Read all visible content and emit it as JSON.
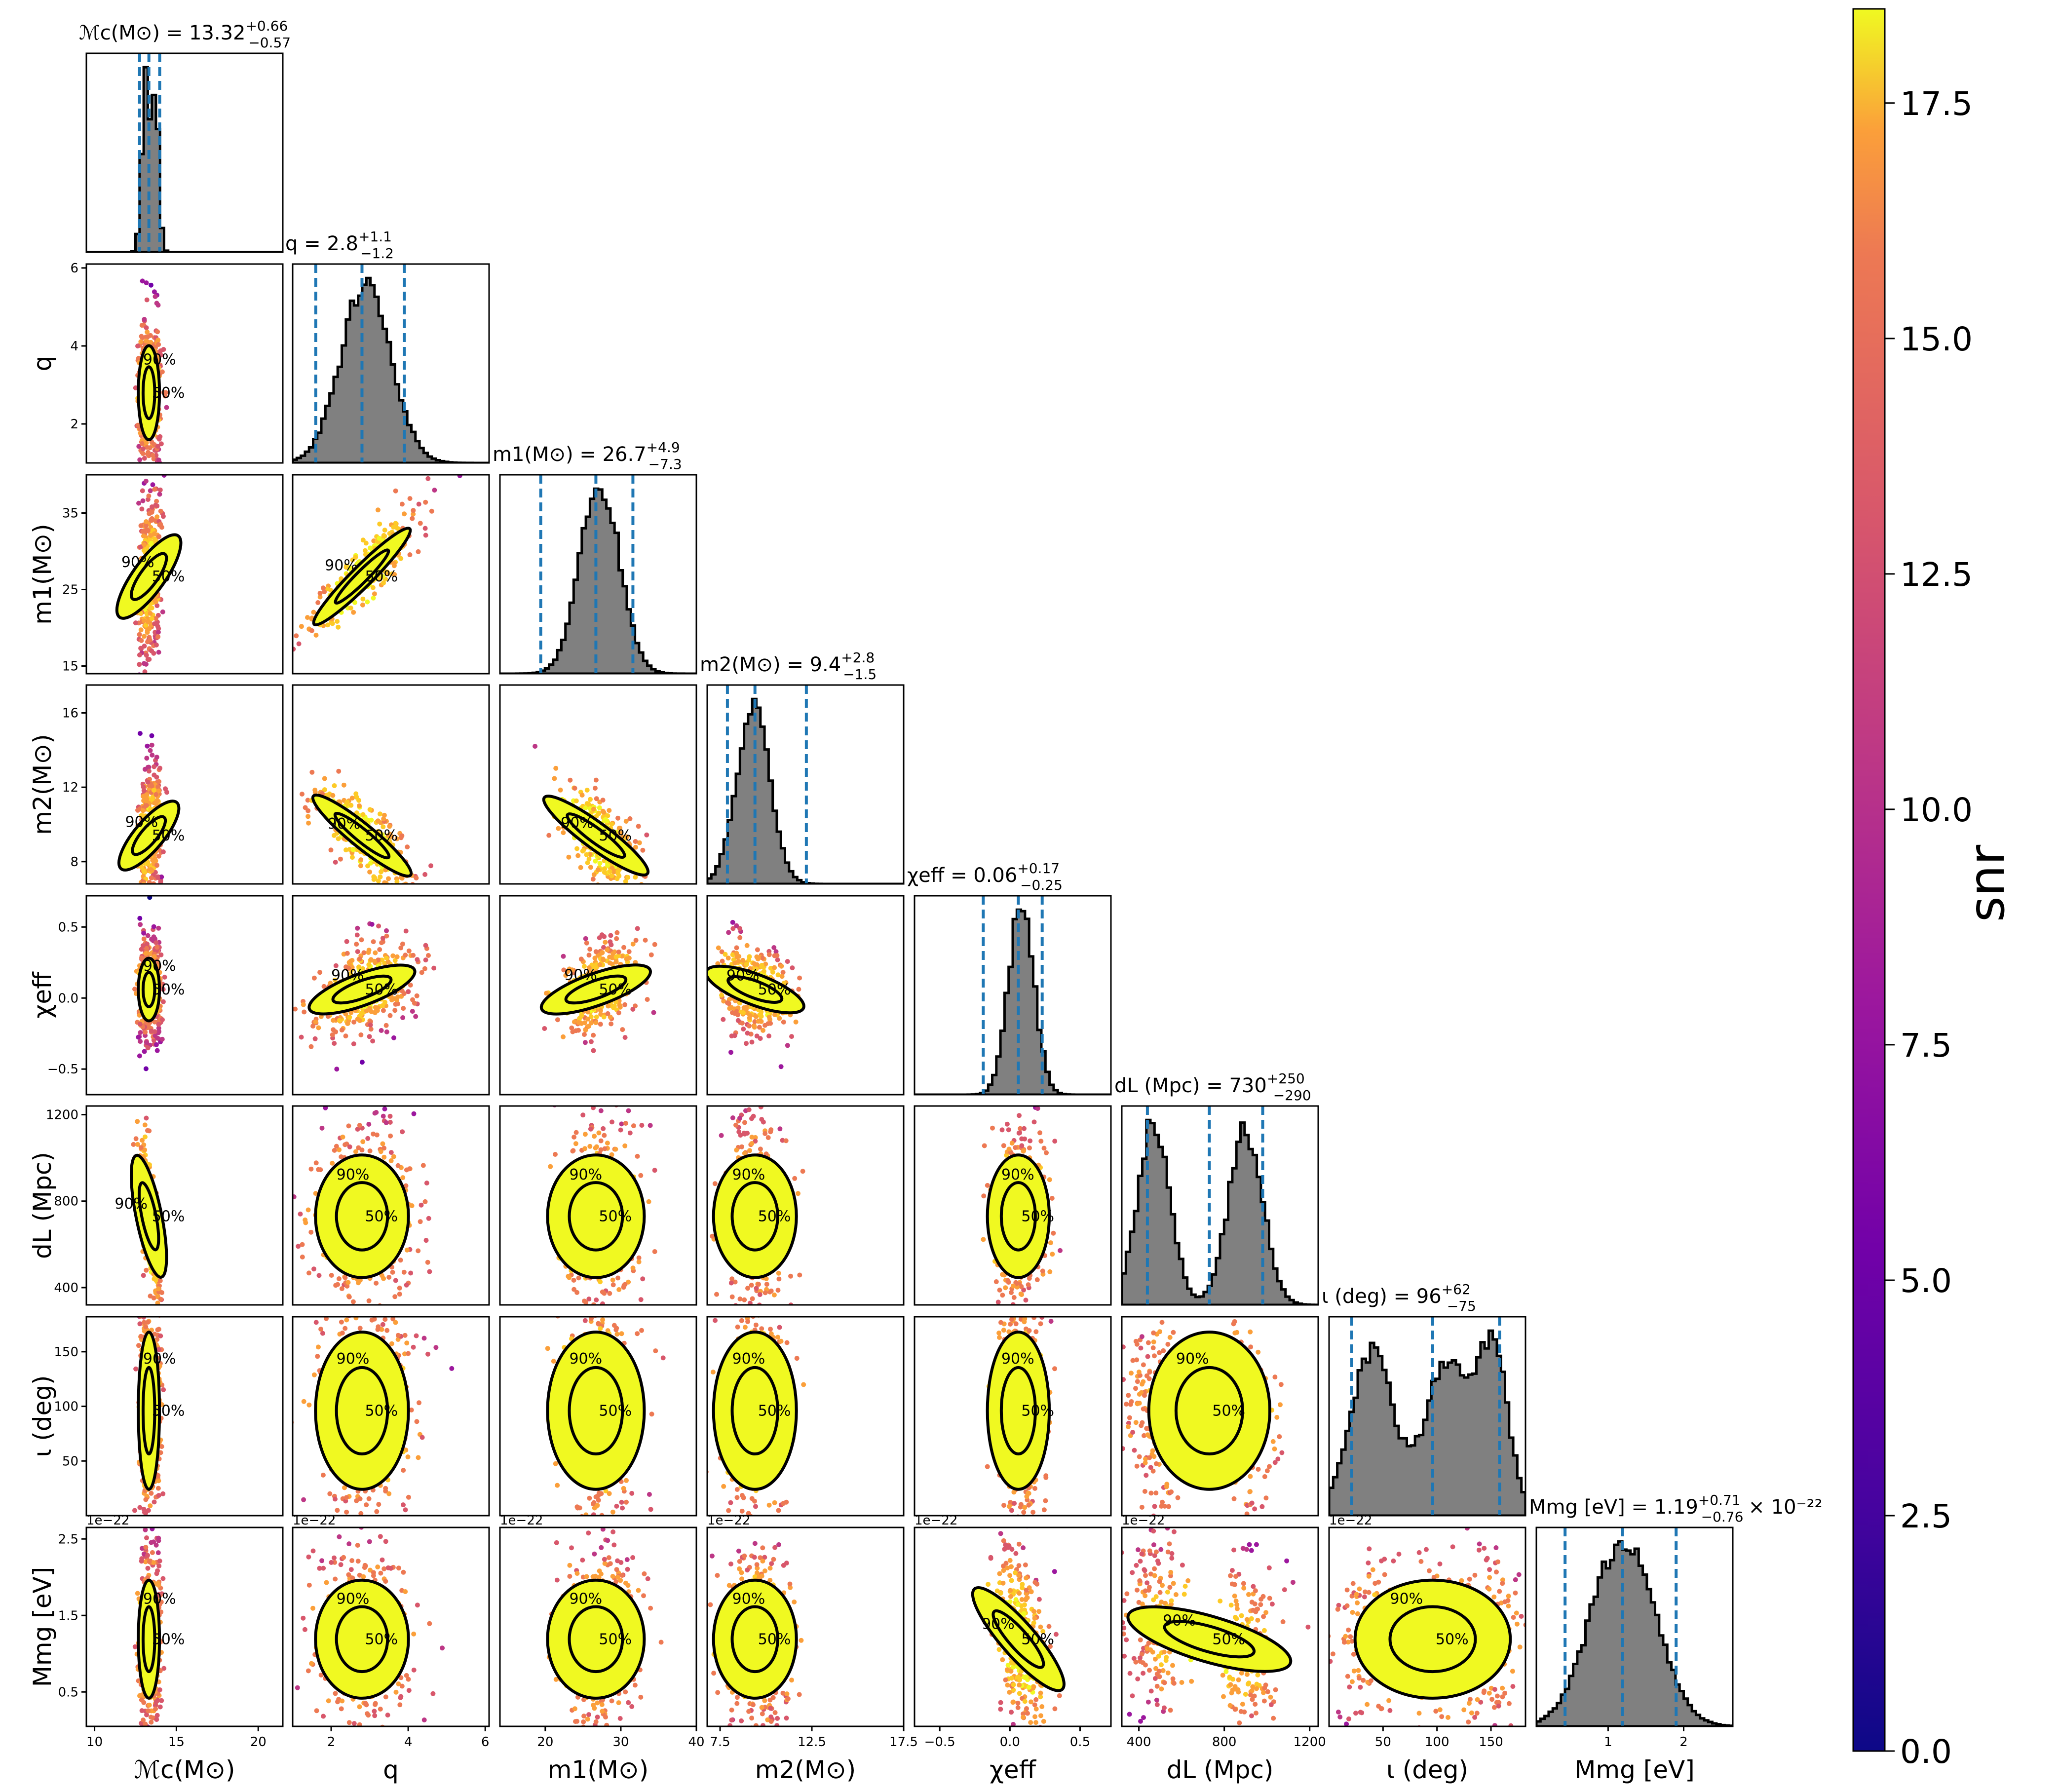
{
  "chart_data": {
    "type": "scatter",
    "layout": "corner plot",
    "colorbar": {
      "label": "snr",
      "range": [
        0,
        18.5
      ],
      "ticks": [
        "0.0",
        "2.5",
        "5.0",
        "7.5",
        "10.0",
        "12.5",
        "15.0",
        "17.5"
      ],
      "colormap": "plasma"
    },
    "colors": {
      "histogram_fill": "#808080",
      "quantile_line": "#1f77b4",
      "contour": "#000000"
    },
    "contour_labels": [
      "50%",
      "90%"
    ],
    "offset_text": "1e−22",
    "parameters": [
      {
        "key": "mc",
        "label": "ℳc(M⊙)",
        "title_main": "ℳc(M⊙) = 13.32",
        "plus": "+0.66",
        "minus": "−0.57",
        "title_suffix": "",
        "range": [
          9.5,
          21.5
        ],
        "ticks": [
          10,
          15,
          20
        ],
        "tick_labels": [
          "10",
          "15",
          "20"
        ],
        "median": 13.32,
        "lo": 12.75,
        "hi": 13.98,
        "modes": [
          {
            "m": 13.1,
            "s": 0.22,
            "w": 1.0
          },
          {
            "m": 13.7,
            "s": 0.22,
            "w": 0.9
          }
        ]
      },
      {
        "key": "q",
        "label": "q",
        "title_main": "q = 2.8",
        "plus": "+1.1",
        "minus": "−1.2",
        "title_suffix": "",
        "range": [
          1.0,
          6.1
        ],
        "ticks": [
          2,
          4,
          6
        ],
        "tick_labels": [
          "2",
          "4",
          "6"
        ],
        "median": 2.8,
        "lo": 1.6,
        "hi": 3.9,
        "modes": [
          {
            "m": 2.9,
            "s": 0.65,
            "w": 1.0
          }
        ]
      },
      {
        "key": "m1",
        "label": "m1(M⊙)",
        "title_main": "m1(M⊙) = 26.7",
        "plus": "+4.9",
        "minus": "−7.3",
        "title_suffix": "",
        "range": [
          14.0,
          40.0
        ],
        "ticks": [
          15,
          25,
          35
        ],
        "tick_labels": [
          "15",
          "25",
          "35"
        ],
        "x_ticks": [
          20,
          30,
          40
        ],
        "x_tick_labels": [
          "20",
          "30",
          "40"
        ],
        "median": 26.7,
        "lo": 19.4,
        "hi": 31.6,
        "modes": [
          {
            "m": 27.2,
            "s": 2.6,
            "w": 1.0
          }
        ]
      },
      {
        "key": "m2",
        "label": "m2(M⊙)",
        "title_main": "m2(M⊙) = 9.4",
        "plus": "+2.8",
        "minus": "−1.5",
        "title_suffix": "",
        "range": [
          6.8,
          17.5
        ],
        "ticks": [
          8,
          12,
          16
        ],
        "tick_labels": [
          "8",
          "12",
          "16"
        ],
        "x_ticks": [
          7.5,
          12.5,
          17.5
        ],
        "x_tick_labels": [
          "7.5",
          "12.5",
          "17.5"
        ],
        "median": 9.4,
        "lo": 7.9,
        "hi": 12.2,
        "modes": [
          {
            "m": 9.3,
            "s": 0.9,
            "w": 1.0
          }
        ]
      },
      {
        "key": "chi",
        "label": "χeff",
        "title_main": "χeff = 0.06",
        "plus": "+0.17",
        "minus": "−0.25",
        "title_suffix": "",
        "range": [
          -0.68,
          0.72
        ],
        "ticks": [
          -0.5,
          0.0,
          0.5
        ],
        "tick_labels": [
          "−0.5",
          "0.0",
          "0.5"
        ],
        "median": 0.06,
        "lo": -0.19,
        "hi": 0.23,
        "modes": [
          {
            "m": 0.08,
            "s": 0.09,
            "w": 1.0
          }
        ]
      },
      {
        "key": "dl",
        "label": "dL (Mpc)",
        "title_main": "dL (Mpc) = 730",
        "plus": "+250",
        "minus": "−290",
        "title_suffix": "",
        "range": [
          320,
          1240
        ],
        "ticks": [
          400,
          800,
          1200
        ],
        "tick_labels": [
          "400",
          "800",
          "1200"
        ],
        "median": 730,
        "lo": 440,
        "hi": 980,
        "modes": [
          {
            "m": 470,
            "s": 75,
            "w": 1.0
          },
          {
            "m": 900,
            "s": 80,
            "w": 0.95
          }
        ]
      },
      {
        "key": "iota",
        "label": "ι (deg)",
        "title_main": "ι (deg) = 96",
        "plus": "+62",
        "minus": "−75",
        "title_suffix": "",
        "range": [
          0,
          182
        ],
        "ticks": [
          50,
          100,
          150
        ],
        "tick_labels": [
          "50",
          "100",
          "150"
        ],
        "median": 96,
        "lo": 21,
        "hi": 158,
        "modes": [
          {
            "m": 40,
            "s": 20,
            "w": 0.95
          },
          {
            "m": 110,
            "s": 20,
            "w": 0.9
          },
          {
            "m": 152,
            "s": 14,
            "w": 0.95
          }
        ]
      },
      {
        "key": "mmg",
        "label": "Mmg [eV]",
        "title_main": "Mmg [eV] = 1.19",
        "plus": "+0.71",
        "minus": "−0.76",
        "title_suffix": "× 10⁻²²",
        "range": [
          0.05,
          2.65
        ],
        "ticks": [
          0.5,
          1.5,
          2.5
        ],
        "tick_labels": [
          "0.5",
          "1.5",
          "2.5"
        ],
        "x_ticks": [
          1,
          2
        ],
        "x_tick_labels": [
          "1",
          "2"
        ],
        "median": 1.19,
        "lo": 0.43,
        "hi": 1.9,
        "modes": [
          {
            "m": 1.2,
            "s": 0.42,
            "w": 1.0
          }
        ]
      }
    ],
    "pair_trends": [
      {
        "row": "q",
        "col": "mc",
        "corr": 0.0
      },
      {
        "row": "m1",
        "col": "mc",
        "corr": 0.3
      },
      {
        "row": "m1",
        "col": "q",
        "corr": 0.95
      },
      {
        "row": "m2",
        "col": "mc",
        "corr": 0.3
      },
      {
        "row": "m2",
        "col": "q",
        "corr": -0.9
      },
      {
        "row": "m2",
        "col": "m1",
        "corr": -0.85
      },
      {
        "row": "chi",
        "col": "q",
        "corr": 0.55
      },
      {
        "row": "chi",
        "col": "m1",
        "corr": 0.55
      },
      {
        "row": "chi",
        "col": "m2",
        "corr": -0.5
      },
      {
        "row": "dl",
        "col": "mc",
        "corr": -0.85
      },
      {
        "row": "dl",
        "col": "chi",
        "corr": 0.0
      },
      {
        "row": "iota",
        "col": "dl",
        "corr": 0.0
      },
      {
        "row": "mmg",
        "col": "chi",
        "corr": -0.6
      },
      {
        "row": "mmg",
        "col": "dl",
        "corr": -0.3
      }
    ]
  }
}
